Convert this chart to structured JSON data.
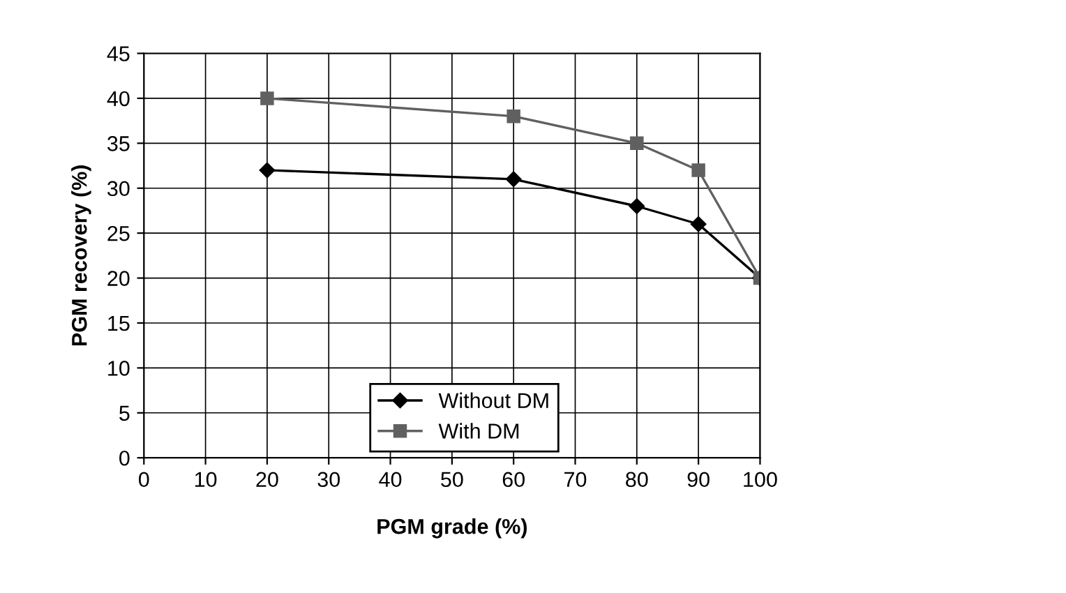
{
  "chart_data": {
    "type": "line",
    "xlabel": "PGM grade (%)",
    "ylabel": "PGM recovery (%)",
    "series": [
      {
        "name": "Without DM",
        "color": "#000000",
        "marker": "diamond",
        "x": [
          20,
          60,
          80,
          90,
          100
        ],
        "values": [
          32,
          31,
          28,
          26,
          20
        ]
      },
      {
        "name": "With DM",
        "color": "#606060",
        "marker": "square",
        "x": [
          20,
          60,
          80,
          90,
          100
        ],
        "values": [
          40,
          38,
          35,
          32,
          20
        ]
      }
    ],
    "xlim": [
      0,
      100
    ],
    "xticks": [
      0,
      10,
      20,
      30,
      40,
      50,
      60,
      70,
      80,
      90,
      100
    ],
    "ylim": [
      0,
      45
    ],
    "yticks": [
      0,
      5,
      10,
      15,
      20,
      25,
      30,
      35,
      40,
      45
    ],
    "grid": true,
    "legend": "bottom",
    "line_style": "solid"
  }
}
